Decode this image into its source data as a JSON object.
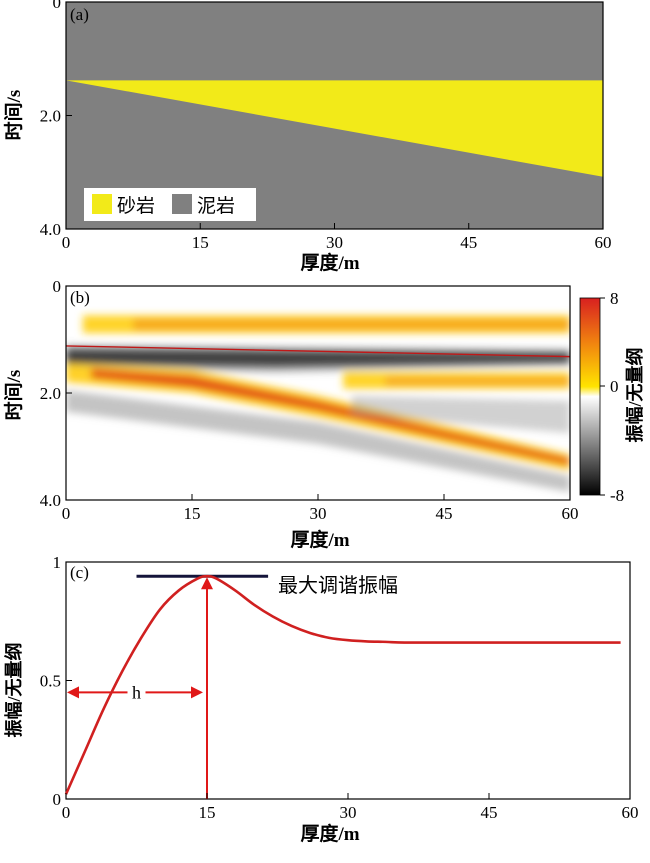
{
  "chart_data": [
    {
      "panel_label": "(a)",
      "type": "heatmap",
      "xlabel": "厚度/m",
      "ylabel": "时间/s",
      "xlim": [
        0,
        60
      ],
      "ylim": [
        0,
        4.0
      ],
      "xticks": [
        "0",
        "15",
        "30",
        "45",
        "60"
      ],
      "yticks": [
        "0",
        "2.0",
        "4.0"
      ],
      "wedge": {
        "top_time": [
          1.38,
          1.38
        ],
        "base_time": [
          1.38,
          3.08
        ],
        "thickness": [
          0,
          60
        ]
      },
      "legend": [
        {
          "label": "砂岩",
          "color": "#f2ea19"
        },
        {
          "label": "泥岩",
          "color": "#808080"
        }
      ],
      "legend_position": "bottom-left"
    },
    {
      "panel_label": "(b)",
      "type": "heatmap",
      "xlabel": "厚度/m",
      "ylabel": "时间/s",
      "xlim": [
        0,
        60
      ],
      "ylim": [
        0,
        4.0
      ],
      "xticks": [
        "0",
        "15",
        "30",
        "45",
        "60"
      ],
      "yticks": [
        "0",
        "2.0",
        "4.0"
      ],
      "colorbar": {
        "label": "振幅/无量纲",
        "ticks": [
          "8",
          "0",
          "-8"
        ],
        "range": [
          -8,
          8
        ],
        "colors": [
          "#000000",
          "#ffffff",
          "#ffe400",
          "#f08010",
          "#d82020"
        ]
      },
      "reference_line_time": 1.32
    },
    {
      "panel_label": "(c)",
      "type": "line",
      "xlabel": "厚度/m",
      "ylabel": "振幅/无量纲",
      "xlim": [
        0,
        60
      ],
      "ylim": [
        0,
        1
      ],
      "xticks": [
        "0",
        "15",
        "30",
        "45",
        "60"
      ],
      "yticks": [
        "1",
        "0.5",
        "0"
      ],
      "series": [
        {
          "color": "#d02020",
          "x": [
            0,
            2,
            4,
            6,
            8,
            10,
            12,
            14,
            15,
            16,
            18,
            20,
            22,
            24,
            26,
            28,
            30,
            32,
            34,
            36,
            40,
            45,
            50,
            55,
            59
          ],
          "y": [
            0.02,
            0.2,
            0.38,
            0.54,
            0.68,
            0.8,
            0.88,
            0.93,
            0.94,
            0.93,
            0.88,
            0.82,
            0.77,
            0.73,
            0.7,
            0.68,
            0.67,
            0.665,
            0.663,
            0.66,
            0.66,
            0.66,
            0.66,
            0.66,
            0.66
          ]
        }
      ],
      "annotations": {
        "max_tuning_label": "最大调谐振幅",
        "max_tuning_value": 0.94,
        "max_tuning_x": [
          7.5,
          21.5
        ],
        "tuning_thickness_label": "h",
        "tuning_thickness": 15
      }
    }
  ]
}
